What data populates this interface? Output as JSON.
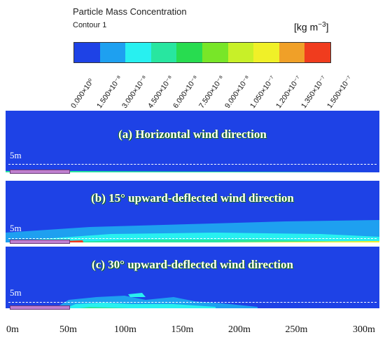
{
  "legend": {
    "title": "Particle Mass Concentration",
    "subtitle": "Contour 1",
    "units_main": "[kg m",
    "units_exp": "−3",
    "units_close": "]",
    "colors": [
      "#1e42e6",
      "#1ea0f0",
      "#28f0f0",
      "#28e6a0",
      "#28dc50",
      "#78e628",
      "#c8f028",
      "#f0f028",
      "#f0a028",
      "#f03c1e"
    ],
    "ticks": [
      "0.000×10⁰",
      "1.500×10⁻⁸",
      "3.000×10⁻⁸",
      "4.500×10⁻⁸",
      "6.000×10⁻⁸",
      "7.500×10⁻⁸",
      "9.000×10⁻⁸",
      "1.050×10⁻⁷",
      "1.200×10⁻⁷",
      "1.350×10⁻⁷",
      "1.500×10⁻⁷"
    ]
  },
  "panels": [
    {
      "title": "(a) Horizontal wind direction",
      "height_label": "5m"
    },
    {
      "title": "(b) 15°  upward-deflected wind direction",
      "height_label": "5m"
    },
    {
      "title": "(c) 30°  upward-deflected wind direction",
      "height_label": "5m"
    }
  ],
  "x_axis": [
    "0m",
    "50m",
    "100m",
    "150m",
    "200m",
    "250m",
    "300m"
  ]
}
